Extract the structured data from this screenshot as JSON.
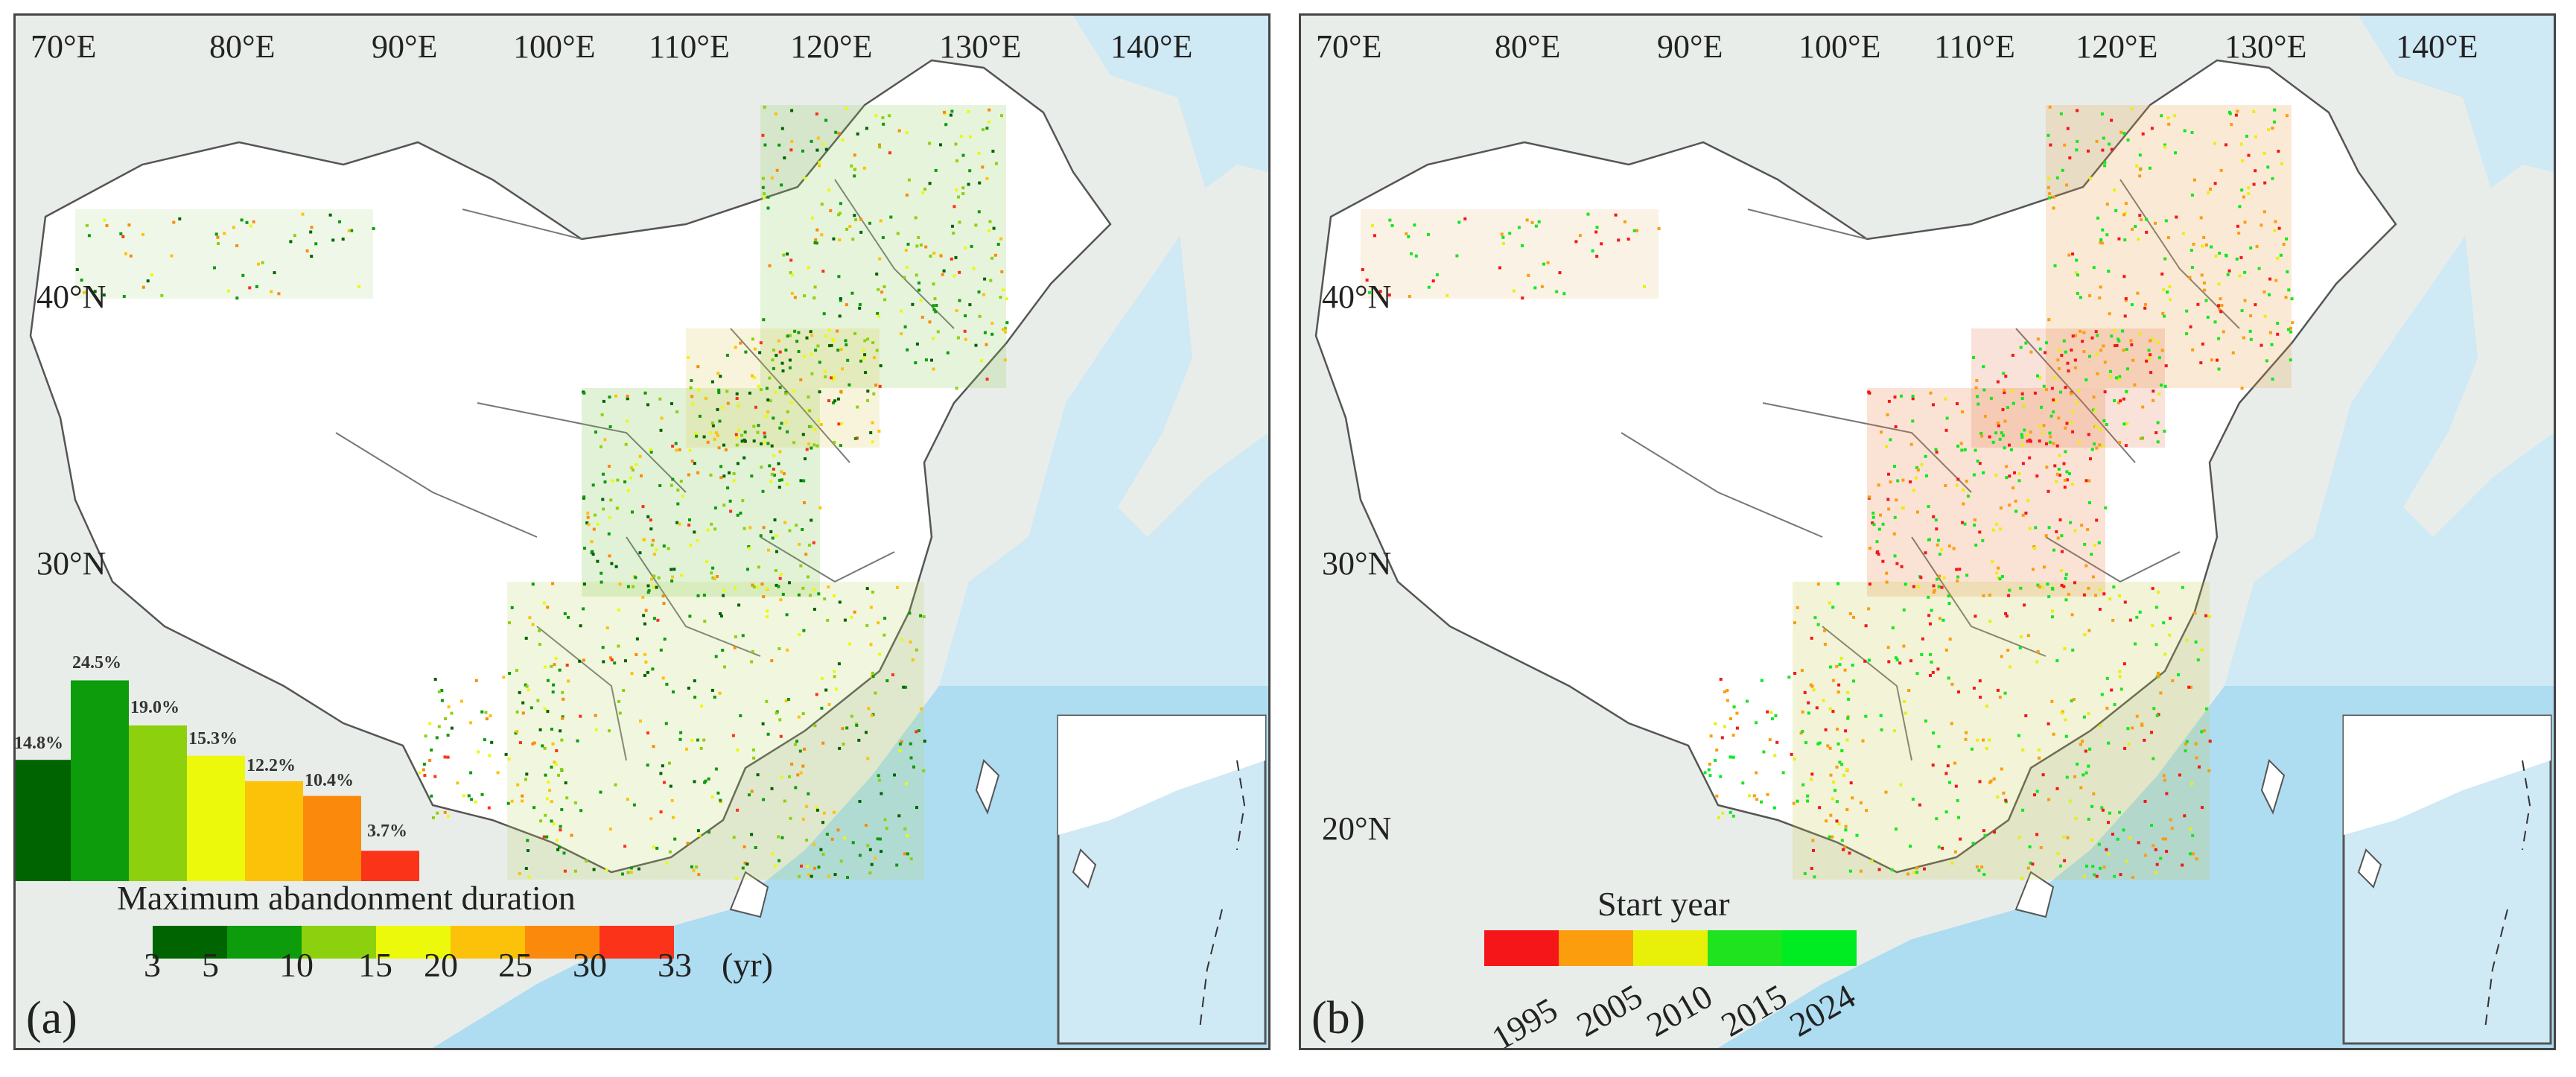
{
  "panels": [
    {
      "id": "a",
      "letter": "(a)",
      "lon_labels": [
        "70°E",
        "80°E",
        "90°E",
        "100°E",
        "110°E",
        "120°E",
        "130°E",
        "140°E"
      ],
      "lat_labels": [
        "40°N",
        "30°N"
      ],
      "legend": {
        "title": "Maximum abandonment duration",
        "unit": "(yr)",
        "ticks": [
          "3",
          "5",
          "10",
          "15",
          "20",
          "25",
          "30",
          "33"
        ],
        "colors": [
          "#006400",
          "#0c9c0c",
          "#8dd10e",
          "#ecf90a",
          "#fcc20a",
          "#fb8a0c",
          "#fb3319"
        ]
      },
      "histogram": {
        "values": [
          14.8,
          24.5,
          19.0,
          15.3,
          12.2,
          10.4,
          3.7
        ],
        "labels": [
          "14.8%",
          "24.5%",
          "19.0%",
          "15.3%",
          "12.2%",
          "10.4%",
          "3.7%"
        ]
      }
    },
    {
      "id": "b",
      "letter": "(b)",
      "lon_labels": [
        "70°E",
        "80°E",
        "90°E",
        "100°E",
        "110°E",
        "120°E",
        "130°E",
        "140°E"
      ],
      "lat_labels": [
        "40°N",
        "30°N",
        "20°N"
      ],
      "legend": {
        "title": "Start year",
        "ticks": [
          "1995",
          "2005",
          "2010",
          "2015",
          "2024"
        ],
        "colors": [
          "#f5161a",
          "#fb9d0d",
          "#e8f00a",
          "#1fe31f",
          "#00ec22"
        ]
      }
    }
  ],
  "colors": {
    "sea": "#cfe9f5",
    "land_other": "#e9edea",
    "china": "#ffffff",
    "border": "#555555"
  }
}
